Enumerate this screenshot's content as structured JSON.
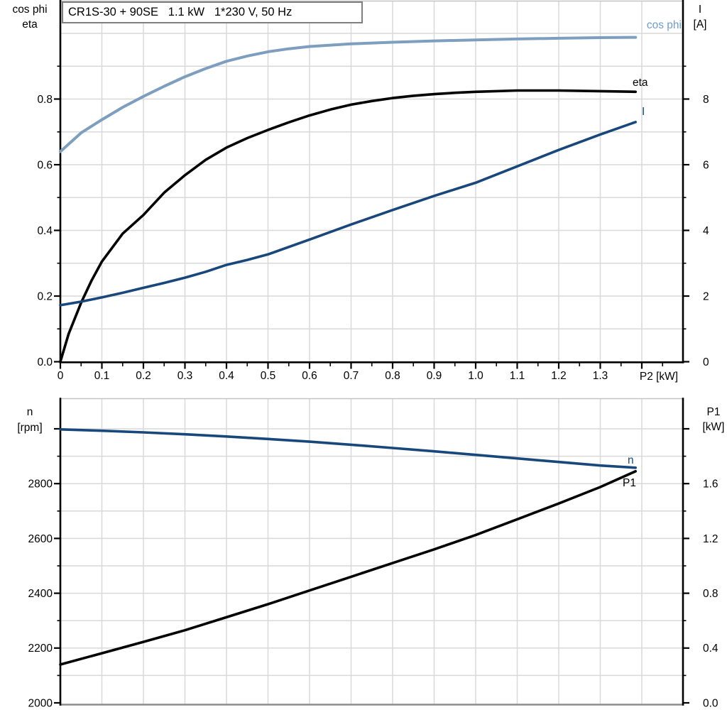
{
  "title": "CR1S-30 + 90SE   1.1 kW   1*230 V, 50 Hz",
  "colors": {
    "cos_phi_curve": "#7D9EBF",
    "cos_phi_label": "#6D9DC9",
    "navy_curve": "#17477B",
    "black_curve": "#000000",
    "grid": "#D9D9D9",
    "frame_gray": "#C4C4C4",
    "bottom_line_gray": "#8C8C8C"
  },
  "chart_data": [
    {
      "type": "line",
      "title": "CR1S-30 + 90SE   1.1 kW   1*230 V, 50 Hz",
      "xlabel": "P2 [kW]",
      "x_axis": {
        "range": [
          0,
          1.5
        ],
        "ticks": [
          0,
          0.1,
          0.2,
          0.3,
          0.4,
          0.5,
          0.6,
          0.7,
          0.8,
          0.9,
          1.0,
          1.1,
          1.2,
          1.3,
          1.4
        ],
        "tick_labels": [
          "0",
          "0.1",
          "0.2",
          "0.3",
          "0.4",
          "0.5",
          "0.6",
          "0.7",
          "0.8",
          "0.9",
          "1.0",
          "1.1",
          "1.2",
          "1.3",
          ""
        ]
      },
      "y_left": {
        "label_lines": [
          "cos phi",
          "eta"
        ],
        "range": [
          0,
          1.1
        ],
        "ticks": [
          0,
          0.2,
          0.4,
          0.6,
          0.8
        ],
        "tick_labels": [
          "0.0",
          "0.2",
          "0.4",
          "0.6",
          "0.8"
        ],
        "minor_ticks": [
          0.1,
          0.3,
          0.5,
          0.7,
          0.9
        ],
        "grid_step": 0.1
      },
      "y_right": {
        "label_lines": [
          "I",
          "[A]"
        ],
        "range": [
          0,
          11
        ],
        "ticks": [
          0,
          2,
          4,
          6,
          8
        ],
        "tick_labels": [
          "0",
          "2",
          "4",
          "6",
          "8"
        ],
        "minor_ticks": [
          1,
          3,
          5,
          7,
          9
        ]
      },
      "series": [
        {
          "name": "cos phi",
          "axis": "left",
          "color": "#7D9EBF",
          "points": [
            [
              0,
              0.64
            ],
            [
              0.05,
              0.697
            ],
            [
              0.1,
              0.737
            ],
            [
              0.15,
              0.775
            ],
            [
              0.2,
              0.808
            ],
            [
              0.25,
              0.839
            ],
            [
              0.3,
              0.868
            ],
            [
              0.35,
              0.893
            ],
            [
              0.4,
              0.915
            ],
            [
              0.45,
              0.931
            ],
            [
              0.5,
              0.944
            ],
            [
              0.55,
              0.953
            ],
            [
              0.6,
              0.96
            ],
            [
              0.7,
              0.968
            ],
            [
              0.8,
              0.973
            ],
            [
              0.9,
              0.977
            ],
            [
              1.0,
              0.98
            ],
            [
              1.1,
              0.983
            ],
            [
              1.2,
              0.985
            ],
            [
              1.3,
              0.987
            ],
            [
              1.385,
              0.988
            ]
          ]
        },
        {
          "name": "eta",
          "axis": "left",
          "color": "#000000",
          "points": [
            [
              0,
              0
            ],
            [
              0.02,
              0.085
            ],
            [
              0.05,
              0.18
            ],
            [
              0.075,
              0.247
            ],
            [
              0.1,
              0.305
            ],
            [
              0.15,
              0.39
            ],
            [
              0.2,
              0.447
            ],
            [
              0.25,
              0.515
            ],
            [
              0.3,
              0.568
            ],
            [
              0.35,
              0.615
            ],
            [
              0.4,
              0.652
            ],
            [
              0.45,
              0.681
            ],
            [
              0.5,
              0.706
            ],
            [
              0.55,
              0.729
            ],
            [
              0.6,
              0.75
            ],
            [
              0.65,
              0.768
            ],
            [
              0.7,
              0.783
            ],
            [
              0.75,
              0.794
            ],
            [
              0.8,
              0.803
            ],
            [
              0.85,
              0.81
            ],
            [
              0.9,
              0.815
            ],
            [
              0.95,
              0.819
            ],
            [
              1.0,
              0.822
            ],
            [
              1.1,
              0.826
            ],
            [
              1.2,
              0.826
            ],
            [
              1.3,
              0.824
            ],
            [
              1.385,
              0.822
            ]
          ]
        },
        {
          "name": "I",
          "axis": "right",
          "color": "#17477B",
          "points": [
            [
              0,
              1.72
            ],
            [
              0.05,
              1.83
            ],
            [
              0.1,
              1.96
            ],
            [
              0.15,
              2.1
            ],
            [
              0.2,
              2.25
            ],
            [
              0.25,
              2.4
            ],
            [
              0.3,
              2.56
            ],
            [
              0.35,
              2.74
            ],
            [
              0.4,
              2.95
            ],
            [
              0.45,
              3.1
            ],
            [
              0.5,
              3.27
            ],
            [
              0.6,
              3.72
            ],
            [
              0.7,
              4.18
            ],
            [
              0.8,
              4.62
            ],
            [
              0.9,
              5.05
            ],
            [
              1.0,
              5.45
            ],
            [
              1.1,
              5.95
            ],
            [
              1.2,
              6.45
            ],
            [
              1.3,
              6.92
            ],
            [
              1.385,
              7.3
            ]
          ]
        }
      ]
    },
    {
      "type": "line",
      "xlabel": "",
      "x_axis": {
        "range": [
          0,
          1.5
        ]
      },
      "y_left": {
        "label_lines": [
          "n",
          "[rpm]"
        ],
        "range": [
          1992,
          3112
        ],
        "ticks": [
          2000,
          2200,
          2400,
          2600,
          2800,
          3000
        ],
        "tick_labels": [
          "2000",
          "2200",
          "2400",
          "2600",
          "2800",
          ""
        ],
        "minor_ticks": [
          2100,
          2300,
          2500,
          2700,
          2900
        ],
        "grid_step": 100
      },
      "y_right": {
        "label_lines": [
          "P1",
          "[kW]"
        ],
        "range": [
          -0.016,
          2.224
        ],
        "ticks": [
          0,
          0.4,
          0.8,
          1.2,
          1.6,
          2.0
        ],
        "tick_labels": [
          "0.0",
          "0.4",
          "0.8",
          "1.2",
          "1.6",
          ""
        ],
        "minor_ticks": [
          0.2,
          0.6,
          1.0,
          1.4,
          1.8
        ]
      },
      "series": [
        {
          "name": "n",
          "axis": "left",
          "color": "#17477B",
          "points": [
            [
              0,
              2998
            ],
            [
              0.1,
              2993
            ],
            [
              0.2,
              2987
            ],
            [
              0.3,
              2980
            ],
            [
              0.4,
              2972
            ],
            [
              0.5,
              2963
            ],
            [
              0.6,
              2953
            ],
            [
              0.7,
              2942
            ],
            [
              0.8,
              2930
            ],
            [
              0.9,
              2918
            ],
            [
              1.0,
              2905
            ],
            [
              1.1,
              2892
            ],
            [
              1.2,
              2879
            ],
            [
              1.3,
              2866
            ],
            [
              1.385,
              2858
            ]
          ]
        },
        {
          "name": "P1",
          "axis": "right",
          "color": "#000000",
          "points": [
            [
              0,
              0.28
            ],
            [
              0.1,
              0.362
            ],
            [
              0.2,
              0.445
            ],
            [
              0.3,
              0.53
            ],
            [
              0.4,
              0.625
            ],
            [
              0.5,
              0.72
            ],
            [
              0.6,
              0.82
            ],
            [
              0.7,
              0.92
            ],
            [
              0.8,
              1.02
            ],
            [
              0.9,
              1.12
            ],
            [
              1.0,
              1.225
            ],
            [
              1.1,
              1.34
            ],
            [
              1.2,
              1.455
            ],
            [
              1.3,
              1.575
            ],
            [
              1.385,
              1.69
            ]
          ]
        }
      ]
    }
  ]
}
